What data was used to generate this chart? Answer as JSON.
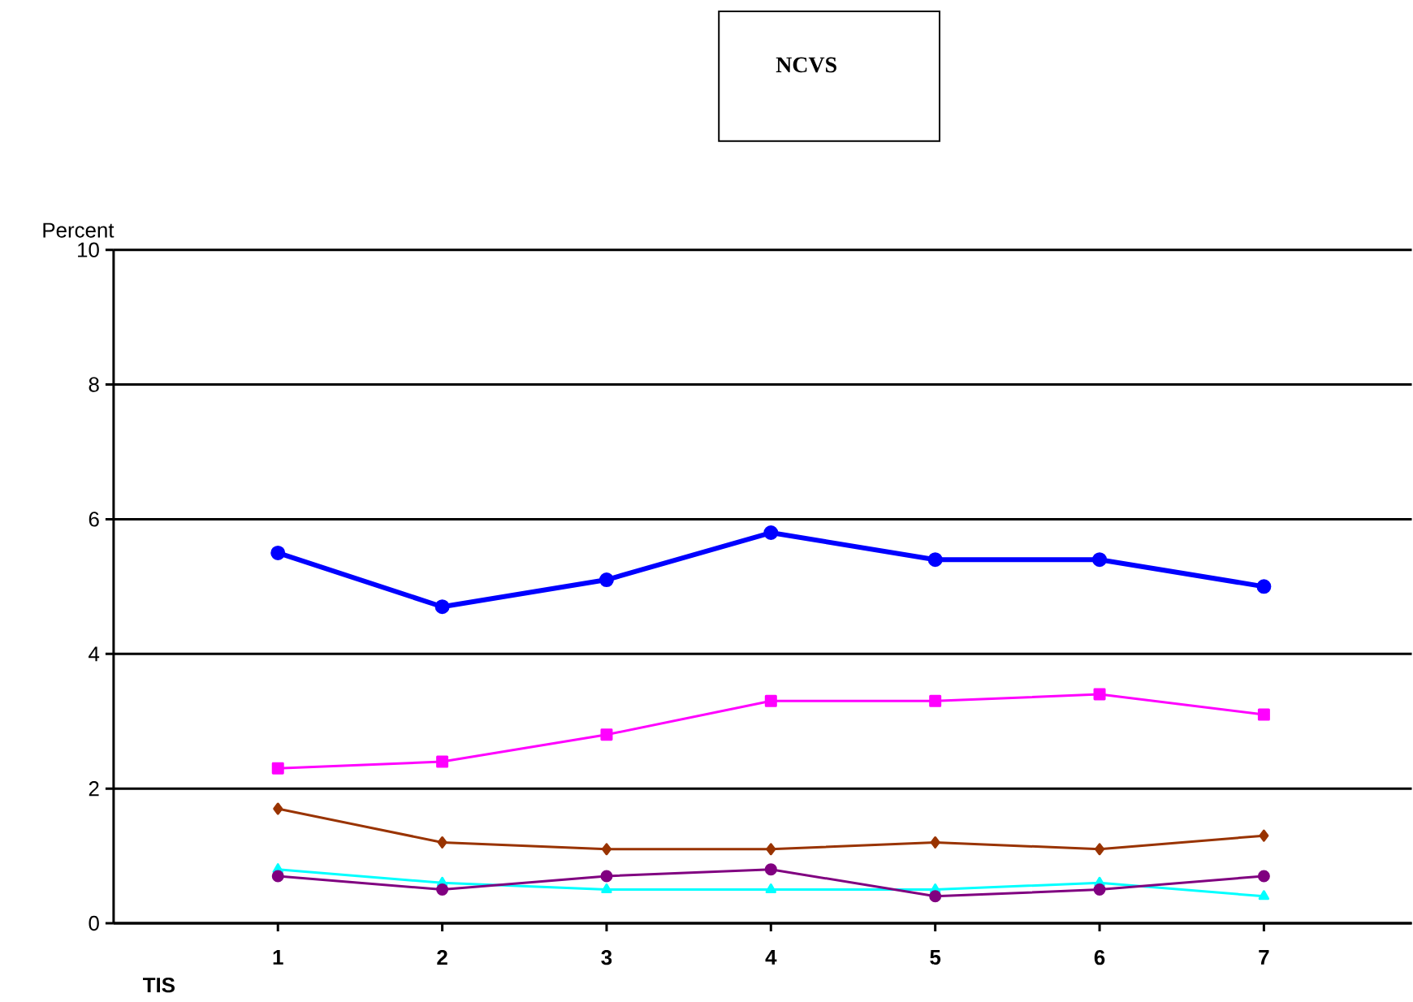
{
  "chart_data": {
    "type": "line",
    "title": "NCVS",
    "ylabel": "Percent",
    "xlabel": "TIS",
    "categories": [
      "1",
      "2",
      "3",
      "4",
      "5",
      "6",
      "7"
    ],
    "series": [
      {
        "color": "#0000ff",
        "marker": "circle",
        "values": [
          5.5,
          4.7,
          5.1,
          5.8,
          5.4,
          5.4,
          5.0
        ]
      },
      {
        "color": "#ff00ff",
        "marker": "square",
        "values": [
          2.3,
          2.4,
          2.8,
          3.3,
          3.3,
          3.4,
          3.1
        ]
      },
      {
        "color": "#993300",
        "marker": "diamond",
        "values": [
          1.7,
          1.2,
          1.1,
          1.1,
          1.2,
          1.1,
          1.3
        ]
      },
      {
        "color": "#00ffff",
        "marker": "triangle",
        "values": [
          0.8,
          0.6,
          0.5,
          0.5,
          0.5,
          0.6,
          0.4
        ]
      },
      {
        "color": "#800080",
        "marker": "circle",
        "values": [
          0.7,
          0.5,
          0.7,
          0.8,
          0.4,
          0.5,
          0.7
        ]
      }
    ],
    "ylim": [
      0,
      10
    ],
    "yticks": [
      0,
      2,
      4,
      6,
      8,
      10
    ],
    "grid": "y",
    "line_style": "solid"
  }
}
